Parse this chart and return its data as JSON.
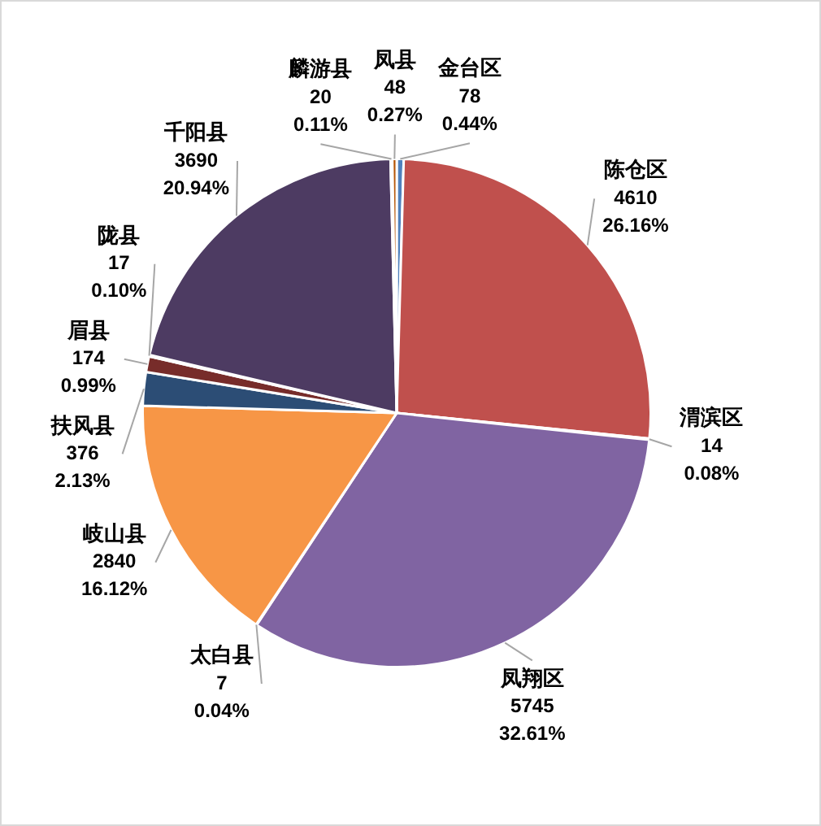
{
  "chart_data": {
    "type": "pie",
    "categories": [
      "金台区",
      "陈仓区",
      "渭滨区",
      "凤翔区",
      "太白县",
      "岐山县",
      "扶风县",
      "眉县",
      "陇县",
      "千阳县",
      "麟游县",
      "凤县"
    ],
    "values": [
      78,
      4610,
      14,
      5745,
      7,
      2840,
      376,
      174,
      17,
      3690,
      20,
      48
    ],
    "colors": [
      "#4f81bd",
      "#c0504d",
      "#9bbb59",
      "#8064a2",
      "#4bacc6",
      "#f79646",
      "#2c4d75",
      "#772c2a",
      "#5f7530",
      "#4d3b62",
      "#276a7c",
      "#b65708"
    ],
    "value_labels": [
      "78\n0.44%",
      "4610\n26.16%",
      "14\n0.08%",
      "5745\n32.61%",
      "7\n0.04%",
      "2840\n16.12%",
      "376\n2.13%",
      "174\n0.99%",
      "17\n0.10%",
      "3690\n20.94%",
      "20\n0.11%",
      "48\n0.27%"
    ],
    "legend": false
  }
}
